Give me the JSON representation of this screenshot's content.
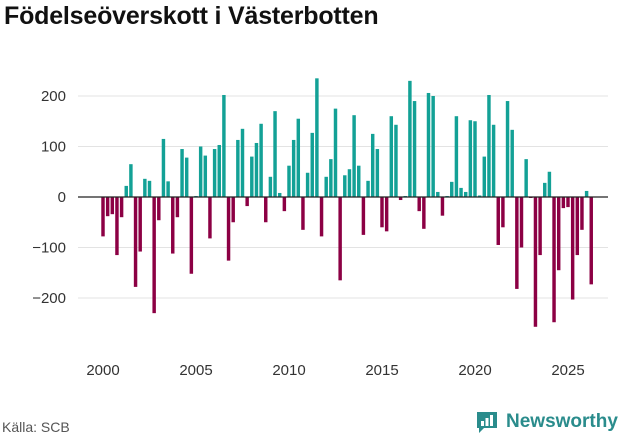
{
  "title": "Födelseöverskott i Västerbotten",
  "source": "Källa: SCB",
  "brand": "Newsworthy",
  "icons": [
    "newsworthy-logo-icon"
  ],
  "colors": {
    "positive": "#13a196",
    "negative": "#8c0044",
    "grid": "#e3e3e3",
    "brand": "#2a8c8c"
  },
  "chart_data": {
    "type": "bar",
    "title": "Födelseöverskott i Västerbotten",
    "xlabel": "",
    "ylabel": "",
    "ylim": [
      -300,
      250
    ],
    "y_ticks": [
      -200,
      -100,
      0,
      100,
      200
    ],
    "x_ticks": [
      2000,
      2005,
      2010,
      2015,
      2020,
      2025
    ],
    "x_start": 2000.0,
    "step": 0.25,
    "values": [
      -78,
      -38,
      -34,
      -115,
      -40,
      22,
      65,
      -178,
      -108,
      36,
      32,
      -230,
      -46,
      115,
      31,
      -112,
      -40,
      95,
      78,
      -152,
      2,
      100,
      82,
      -82,
      95,
      103,
      202,
      -126,
      -50,
      113,
      135,
      -18,
      80,
      107,
      145,
      -50,
      40,
      170,
      8,
      -28,
      62,
      113,
      155,
      -65,
      48,
      127,
      235,
      -78,
      40,
      75,
      175,
      -165,
      43,
      55,
      162,
      62,
      -75,
      32,
      125,
      95,
      -60,
      -68,
      160,
      143,
      -6,
      2,
      230,
      190,
      -28,
      -63,
      206,
      200,
      10,
      -37,
      2,
      30,
      160,
      18,
      10,
      152,
      150,
      3,
      80,
      202,
      143,
      -95,
      -60,
      190,
      133,
      -182,
      -100,
      75,
      -2,
      -257,
      -115,
      28,
      50,
      -248,
      -145,
      -22,
      -20,
      -203,
      -115,
      -65,
      12,
      -173
    ]
  }
}
